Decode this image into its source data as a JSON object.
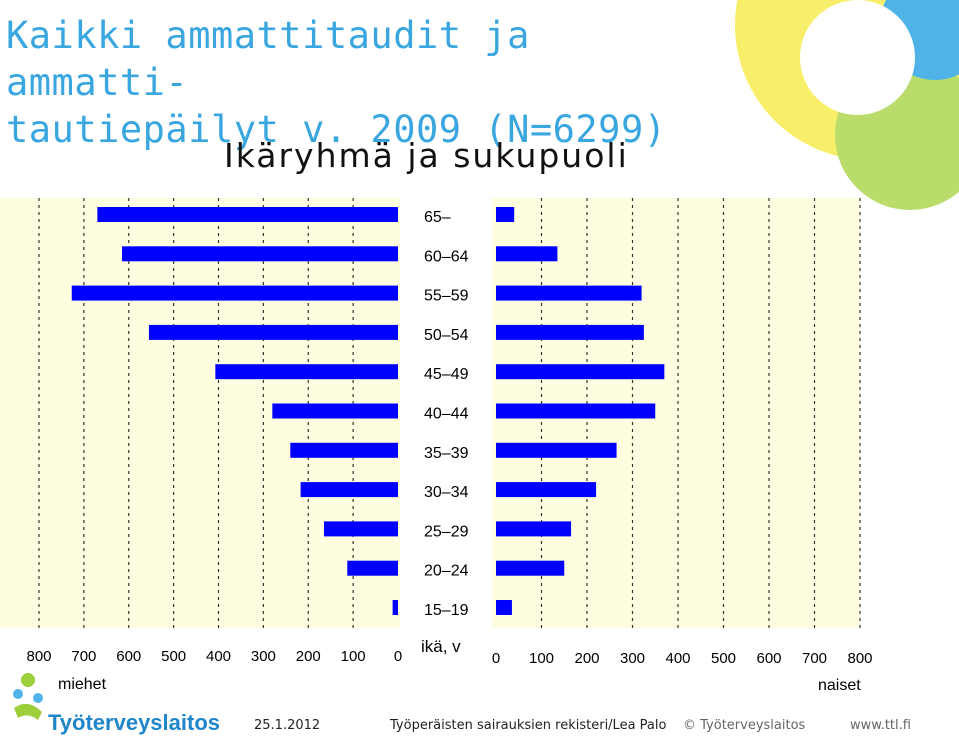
{
  "title": "Kaikki ammattitaudit ja ammatti-tautiepäilyt v. 2009 (N=6299)",
  "title_lines": [
    "Kaikki ammattitaudit ja ammatti-",
    "tautiepäilyt v. 2009 (N=6299)"
  ],
  "subtitle": "Ikäryhmä ja sukupuoli",
  "colors": {
    "bar": "#0000ff",
    "plot_bg": "#fffde0",
    "title": "#3aa6e0",
    "deco_yellow": "#f7ef6a",
    "deco_green": "#9ccf3a",
    "deco_blue": "#4fb3e8"
  },
  "chart_data": {
    "type": "bar",
    "orientation": "horizontal-population-pyramid",
    "categories": [
      "65–",
      "60–64",
      "55–59",
      "50–54",
      "45–49",
      "40–44",
      "35–39",
      "30–34",
      "25–29",
      "20–24",
      "15–19"
    ],
    "series": [
      {
        "name": "miehet",
        "values": [
          670,
          615,
          727,
          555,
          407,
          280,
          240,
          217,
          165,
          113,
          12
        ]
      },
      {
        "name": "naiset",
        "values": [
          40,
          135,
          320,
          325,
          370,
          350,
          265,
          220,
          165,
          150,
          35
        ]
      }
    ],
    "left_ticks": [
      "800",
      "700",
      "600",
      "500",
      "400",
      "300",
      "200",
      "100",
      "0"
    ],
    "right_ticks": [
      "0",
      "100",
      "200",
      "300",
      "400",
      "500",
      "600",
      "700",
      "800"
    ],
    "xlim": [
      0,
      800
    ],
    "left_label": "miehet",
    "right_label": "naiset",
    "center_label": "ikä, v",
    "grid": "vertical dashed"
  },
  "footer": {
    "logo_text": "Työterveyslaitos",
    "date": "25.1.2012",
    "source": "Työperäisten sairauksien rekisteri/Lea Palo",
    "copyright": "© Työterveyslaitos",
    "url": "www.ttl.fi"
  }
}
